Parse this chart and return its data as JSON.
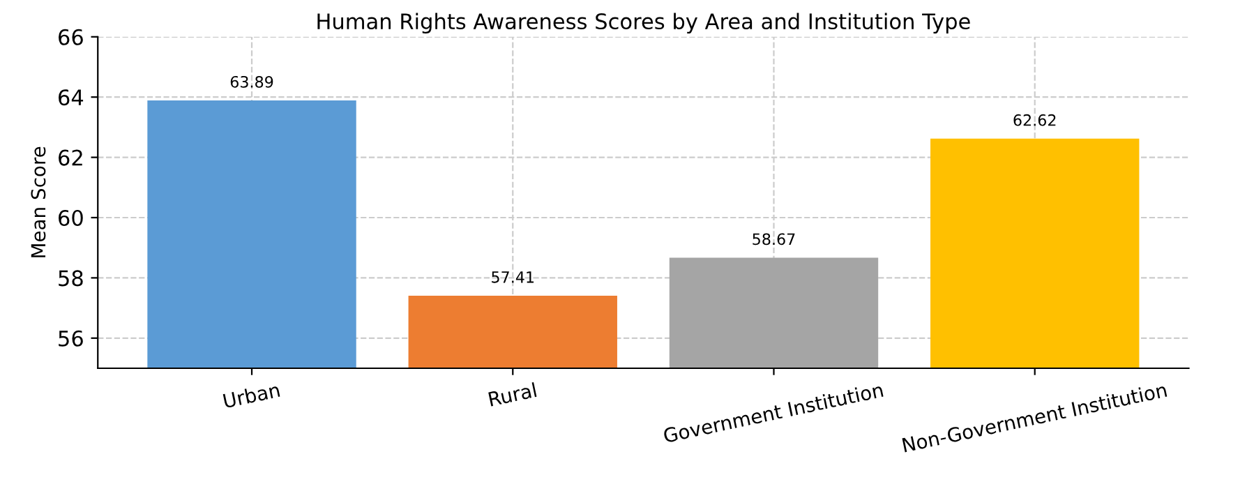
{
  "chart_data": {
    "type": "bar",
    "title": "Human Rights Awareness Scores by Area and Institution Type",
    "ylabel": "Mean Score",
    "categories": [
      "Urban",
      "Rural",
      "Government Institution",
      "Non-Government Institution"
    ],
    "values": [
      63.89,
      57.41,
      58.67,
      62.62
    ],
    "colors": [
      "#5b9bd5",
      "#ed7d31",
      "#a5a5a5",
      "#ffc000"
    ],
    "data_labels": true,
    "ylim": [
      55,
      66
    ],
    "yticks": [
      56,
      58,
      60,
      62,
      64,
      66
    ],
    "grid": true
  }
}
